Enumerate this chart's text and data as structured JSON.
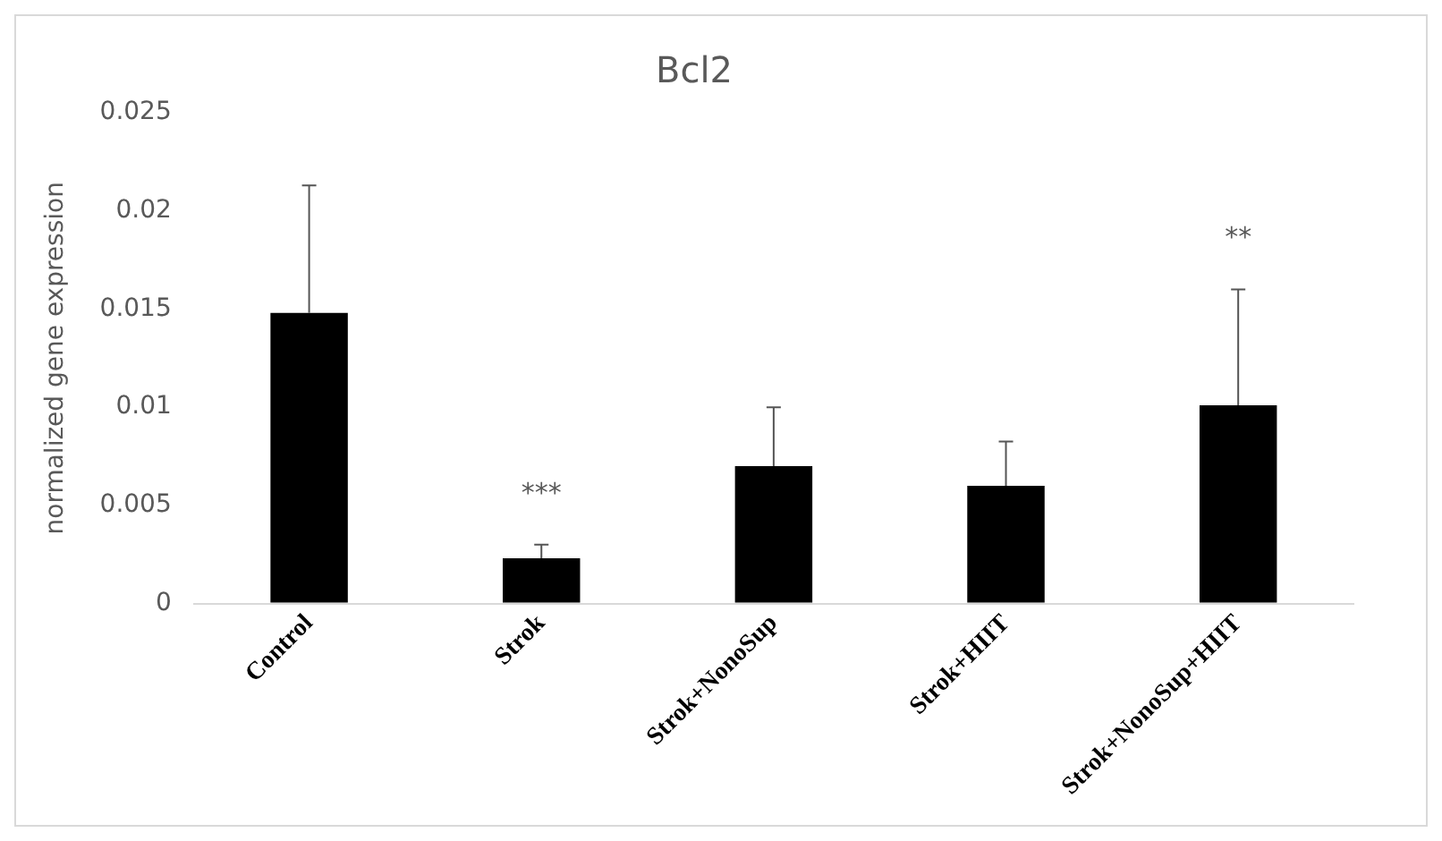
{
  "chart_data": {
    "type": "bar",
    "title": "Bcl2",
    "ylabel": "normalized gene expression",
    "categories": [
      "Control",
      "Strok",
      "Strok+NonoSup",
      "Strok+HIIT",
      "Strok+NonoSup+HIIT"
    ],
    "values": [
      0.0148,
      0.0023,
      0.007,
      0.006,
      0.0101
    ],
    "errors": [
      [
        0.0148,
        0.0213
      ],
      [
        0.0023,
        0.003
      ],
      [
        0.007,
        0.01
      ],
      [
        0.006,
        0.00825
      ],
      [
        0.0101,
        0.016
      ]
    ],
    "color": "#000000",
    "ylim": [
      0,
      0.025
    ],
    "yticks": [
      0,
      0.005,
      0.01,
      0.015,
      0.02,
      0.025
    ],
    "grid": false,
    "legend": false,
    "annotations": [
      "***",
      "**"
    ]
  }
}
